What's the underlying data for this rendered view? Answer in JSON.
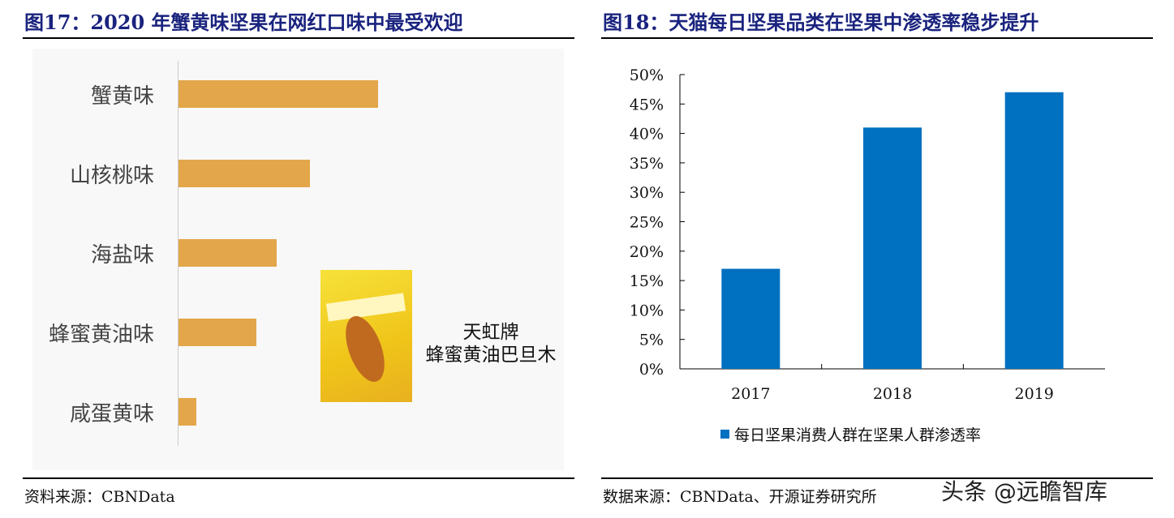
{
  "left": {
    "title": "图17：2020 年蟹黄味坚果在网红口味中最受欢迎",
    "source": "资料来源：CBNData",
    "product_label_line1": "天虹牌",
    "product_label_line2": "蜂蜜黄油巴旦木"
  },
  "right": {
    "title": "图18：天猫每日坚果品类在坚果中渗透率稳步提升",
    "source": "数据来源：CBNData、开源证券研究所"
  },
  "watermark": "头条 @远瞻智库",
  "chart_data": [
    {
      "type": "bar",
      "orientation": "horizontal",
      "categories": [
        "蟹黄味",
        "山核桃味",
        "海盐味",
        "蜂蜜黄油味",
        "咸蛋黄味"
      ],
      "values": [
        100,
        66,
        49,
        39,
        9
      ],
      "bar_color": "#e3a64a",
      "grid": false
    },
    {
      "type": "bar",
      "categories": [
        "2017",
        "2018",
        "2019"
      ],
      "series": [
        {
          "name": "每日坚果消费人群在坚果人群渗透率",
          "values": [
            17,
            41,
            47
          ]
        }
      ],
      "yticks": [
        "0%",
        "5%",
        "10%",
        "15%",
        "20%",
        "25%",
        "30%",
        "35%",
        "40%",
        "45%",
        "50%"
      ],
      "ylim": [
        0,
        50
      ],
      "bar_color": "#0070c0",
      "legend": "bottom",
      "grid": false
    }
  ]
}
